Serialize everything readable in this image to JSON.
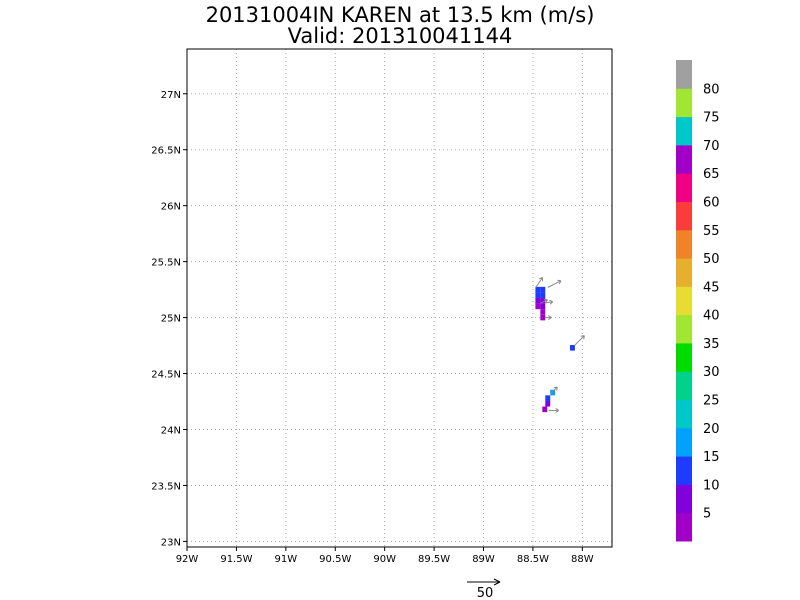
{
  "chart_data": {
    "type": "heatmap",
    "title_line1": "20131004IN KAREN at 13.5 km (m/s)",
    "title_line2": "Valid: 201310041144",
    "xlim": [
      -92,
      -87.7
    ],
    "ylim": [
      22.95,
      27.4
    ],
    "x_ticks": [
      {
        "value": -92,
        "label": "92W"
      },
      {
        "value": -91.5,
        "label": "91.5W"
      },
      {
        "value": -91,
        "label": "91W"
      },
      {
        "value": -90.5,
        "label": "90.5W"
      },
      {
        "value": -90,
        "label": "90W"
      },
      {
        "value": -89.5,
        "label": "89.5W"
      },
      {
        "value": -89,
        "label": "89W"
      },
      {
        "value": -88.5,
        "label": "88.5W"
      },
      {
        "value": -88,
        "label": "88W"
      }
    ],
    "y_ticks": [
      {
        "value": 23,
        "label": "23N"
      },
      {
        "value": 23.5,
        "label": "23.5N"
      },
      {
        "value": 24,
        "label": "24N"
      },
      {
        "value": 24.5,
        "label": "24.5N"
      },
      {
        "value": 25,
        "label": "25N"
      },
      {
        "value": 25.5,
        "label": "25.5N"
      },
      {
        "value": 26,
        "label": "26N"
      },
      {
        "value": 26.5,
        "label": "26.5N"
      },
      {
        "value": 27,
        "label": "27N"
      }
    ],
    "grid": true,
    "colorbar": {
      "bins": [
        {
          "from": 0,
          "to": 5,
          "color": "#a000c8"
        },
        {
          "from": 5,
          "to": 10,
          "color": "#8200dc"
        },
        {
          "from": 10,
          "to": 15,
          "color": "#1e3cff"
        },
        {
          "from": 15,
          "to": 20,
          "color": "#00a0ff"
        },
        {
          "from": 20,
          "to": 25,
          "color": "#00c8c8"
        },
        {
          "from": 25,
          "to": 30,
          "color": "#00d28c"
        },
        {
          "from": 30,
          "to": 35,
          "color": "#00dc00"
        },
        {
          "from": 35,
          "to": 40,
          "color": "#a0e632"
        },
        {
          "from": 40,
          "to": 45,
          "color": "#e6dc32"
        },
        {
          "from": 45,
          "to": 50,
          "color": "#e6af2d"
        },
        {
          "from": 50,
          "to": 55,
          "color": "#f08228"
        },
        {
          "from": 55,
          "to": 60,
          "color": "#fa3c3c"
        },
        {
          "from": 60,
          "to": 65,
          "color": "#f00082"
        },
        {
          "from": 65,
          "to": 70,
          "color": "#a000c8"
        },
        {
          "from": 70,
          "to": 75,
          "color": "#00c8c8"
        },
        {
          "from": 75,
          "to": 80,
          "color": "#a0e632"
        },
        {
          "from": 80,
          "to": 85,
          "color": "#a0a0a0"
        }
      ],
      "labels": [
        "5",
        "10",
        "15",
        "20",
        "25",
        "30",
        "35",
        "40",
        "45",
        "50",
        "55",
        "60",
        "65",
        "70",
        "75",
        "80"
      ]
    },
    "cells": [
      {
        "lon": -88.45,
        "lat": 25.25,
        "value": 12
      },
      {
        "lon": -88.4,
        "lat": 25.25,
        "value": 12
      },
      {
        "lon": -88.45,
        "lat": 25.2,
        "value": 11
      },
      {
        "lon": -88.4,
        "lat": 25.2,
        "value": 12
      },
      {
        "lon": -88.45,
        "lat": 25.15,
        "value": 7
      },
      {
        "lon": -88.4,
        "lat": 25.15,
        "value": 8
      },
      {
        "lon": -88.45,
        "lat": 25.1,
        "value": 4
      },
      {
        "lon": -88.4,
        "lat": 25.1,
        "value": 6
      },
      {
        "lon": -88.4,
        "lat": 25.05,
        "value": 3
      },
      {
        "lon": -88.4,
        "lat": 25.0,
        "value": 4
      },
      {
        "lon": -88.1,
        "lat": 24.73,
        "value": 12
      },
      {
        "lon": -88.3,
        "lat": 24.33,
        "value": 18
      },
      {
        "lon": -88.35,
        "lat": 24.28,
        "value": 12
      },
      {
        "lon": -88.35,
        "lat": 24.23,
        "value": 8
      },
      {
        "lon": -88.38,
        "lat": 24.18,
        "value": 4
      }
    ],
    "vectors": [
      {
        "lon": -88.47,
        "lat": 25.27,
        "u": 10,
        "v": 15
      },
      {
        "lon": -88.35,
        "lat": 25.27,
        "u": 20,
        "v": 10
      },
      {
        "lon": -88.42,
        "lat": 25.13,
        "u": 10,
        "v": 5
      },
      {
        "lon": -88.38,
        "lat": 25.13,
        "u": 12,
        "v": 2
      },
      {
        "lon": -88.38,
        "lat": 25.0,
        "u": 10,
        "v": 0
      },
      {
        "lon": -88.08,
        "lat": 24.75,
        "u": 15,
        "v": 15
      },
      {
        "lon": -88.32,
        "lat": 24.32,
        "u": 10,
        "v": 10
      },
      {
        "lon": -88.34,
        "lat": 24.17,
        "u": 15,
        "v": 0
      }
    ],
    "reference_vector": {
      "value": 50,
      "label": "50"
    }
  }
}
